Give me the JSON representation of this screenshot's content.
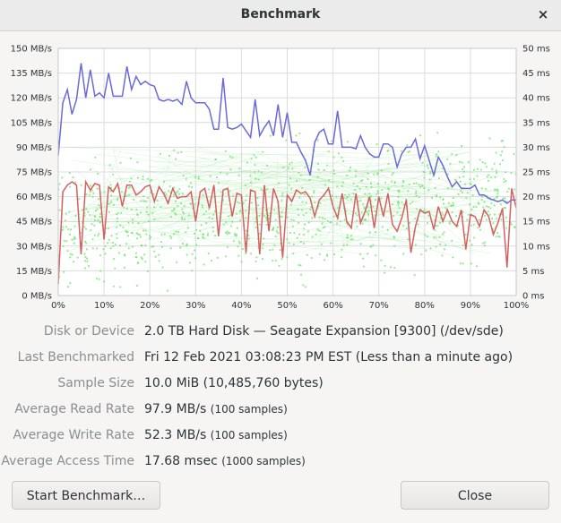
{
  "window": {
    "title": "Benchmark",
    "close_glyph": "×",
    "close_icon": "close-icon"
  },
  "chart_data": {
    "type": "line",
    "title": "",
    "x_ticks": [
      "0%",
      "10%",
      "20%",
      "30%",
      "40%",
      "50%",
      "60%",
      "70%",
      "80%",
      "90%",
      "100%"
    ],
    "y_left_ticks": [
      "0 MB/s",
      "15 MB/s",
      "30 MB/s",
      "45 MB/s",
      "60 MB/s",
      "75 MB/s",
      "90 MB/s",
      "105 MB/s",
      "120 MB/s",
      "135 MB/s",
      "150 MB/s"
    ],
    "y_right_ticks": [
      "0 ms",
      "5 ms",
      "10 ms",
      "15 ms",
      "20 ms",
      "25 ms",
      "30 ms",
      "35 ms",
      "40 ms",
      "45 ms",
      "50 ms"
    ],
    "xlim": [
      0,
      100
    ],
    "ylim_left": [
      0,
      150
    ],
    "ylim_right": [
      0,
      50
    ],
    "grid": true,
    "series": [
      {
        "color": "#6a6ad8",
        "axis": "left",
        "unit": "MB/s",
        "x": [
          0,
          1,
          2,
          3,
          4,
          5,
          6,
          7,
          8,
          9,
          10,
          11,
          12,
          13,
          14,
          15,
          16,
          17,
          18,
          19,
          20,
          21,
          22,
          23,
          24,
          25,
          26,
          27,
          28,
          29,
          30,
          31,
          32,
          33,
          34,
          35,
          36,
          37,
          38,
          39,
          40,
          41,
          42,
          43,
          44,
          45,
          46,
          47,
          48,
          49,
          50,
          51,
          52,
          53,
          54,
          55,
          56,
          57,
          58,
          59,
          60,
          61,
          62,
          63,
          64,
          65,
          66,
          67,
          68,
          69,
          70,
          71,
          72,
          73,
          74,
          75,
          76,
          77,
          78,
          79,
          80,
          81,
          82,
          83,
          84,
          85,
          86,
          87,
          88,
          89,
          90,
          91,
          92,
          93,
          94,
          95,
          96,
          97,
          98,
          99,
          100
        ],
        "values": [
          85,
          117,
          125,
          110,
          119,
          141,
          120,
          137,
          121,
          123,
          120,
          135,
          121,
          121,
          121,
          139,
          125,
          133,
          128,
          130,
          128,
          127,
          119,
          118,
          119,
          118,
          119,
          116,
          130,
          120,
          117,
          117,
          117,
          113,
          101,
          101,
          132,
          102,
          101,
          102,
          104,
          100,
          96,
          119,
          97,
          102,
          106,
          97,
          116,
          96,
          111,
          93,
          93,
          87,
          82,
          73,
          93,
          99,
          101,
          92,
          92,
          112,
          90,
          90,
          90,
          89,
          97,
          90,
          86,
          84,
          84,
          92,
          92,
          90,
          78,
          86,
          90,
          90,
          95,
          83,
          91,
          82,
          73,
          84,
          79,
          72,
          66,
          69,
          65,
          65,
          65,
          67,
          61,
          61,
          59,
          58,
          57,
          58,
          56,
          58,
          58
        ]
      },
      {
        "color": "#d56060",
        "axis": "left",
        "unit": "MB/s",
        "x": [
          0,
          1,
          2,
          3,
          4,
          5,
          6,
          7,
          8,
          9,
          10,
          11,
          12,
          13,
          14,
          15,
          16,
          17,
          18,
          19,
          20,
          21,
          22,
          23,
          24,
          25,
          26,
          27,
          28,
          29,
          30,
          31,
          32,
          33,
          34,
          35,
          36,
          37,
          38,
          39,
          40,
          41,
          42,
          43,
          44,
          45,
          46,
          47,
          48,
          49,
          50,
          51,
          52,
          53,
          54,
          55,
          56,
          57,
          58,
          59,
          60,
          61,
          62,
          63,
          64,
          65,
          66,
          67,
          68,
          69,
          70,
          71,
          72,
          73,
          74,
          75,
          76,
          77,
          78,
          79,
          80,
          81,
          82,
          83,
          84,
          85,
          86,
          87,
          88,
          89,
          90,
          91,
          92,
          93,
          94,
          95,
          96,
          97,
          98,
          99,
          100
        ],
        "values": [
          7,
          63,
          67,
          69,
          67,
          25,
          69,
          64,
          68,
          67,
          34,
          66,
          63,
          68,
          54,
          67,
          67,
          61,
          63,
          66,
          67,
          57,
          66,
          62,
          56,
          65,
          59,
          60,
          60,
          63,
          45,
          63,
          65,
          53,
          67,
          36,
          64,
          65,
          48,
          62,
          61,
          26,
          64,
          63,
          25,
          67,
          39,
          65,
          57,
          23,
          61,
          57,
          64,
          62,
          63,
          59,
          48,
          58,
          61,
          65,
          54,
          47,
          62,
          45,
          41,
          62,
          44,
          51,
          60,
          41,
          60,
          48,
          62,
          43,
          39,
          47,
          58,
          26,
          42,
          52,
          50,
          51,
          40,
          54,
          45,
          52,
          45,
          42,
          52,
          28,
          49,
          48,
          42,
          52,
          48,
          37,
          44,
          53,
          17,
          65,
          53
        ]
      },
      {
        "color": "#6ee46e",
        "axis": "right",
        "unit": "ms",
        "style": "scatter",
        "label": "access time samples (1000)"
      }
    ]
  },
  "info": {
    "rows": [
      {
        "label": "Disk or Device",
        "value": "2.0 TB Hard Disk — Seagate Expansion [9300] (/dev/sde)",
        "small": ""
      },
      {
        "label": "Last Benchmarked",
        "value": "Fri 12 Feb 2021 03:08:23 PM EST (Less than a minute ago)",
        "small": ""
      },
      {
        "label": "Sample Size",
        "value": "10.0 MiB (10,485,760 bytes)",
        "small": ""
      },
      {
        "label": "Average Read Rate",
        "value": "97.9 MB/s",
        "small": "(100 samples)"
      },
      {
        "label": "Average Write Rate",
        "value": "52.3 MB/s",
        "small": "(100 samples)"
      },
      {
        "label": "Average Access Time",
        "value": "17.68 msec",
        "small": "(1000 samples)"
      }
    ]
  },
  "buttons": {
    "start": "Start Benchmark…",
    "close": "Close"
  }
}
